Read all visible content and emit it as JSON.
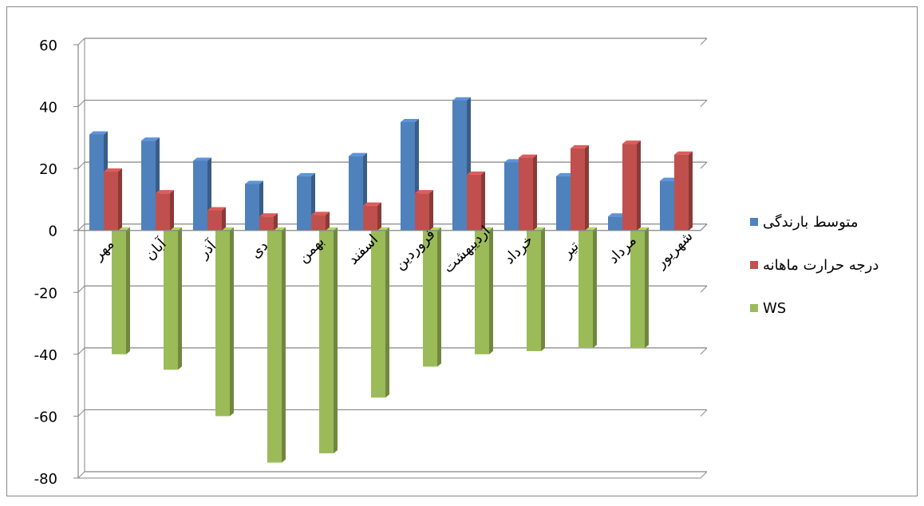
{
  "chart_data": {
    "type": "bar",
    "title": "",
    "xlabel": "",
    "ylabel": "",
    "ylim": [
      -80,
      60
    ],
    "yticks": [
      60,
      40,
      20,
      0,
      -20,
      -40,
      -60,
      -80
    ],
    "grid": true,
    "legend_position": "right",
    "categories": [
      "مهر",
      "آبان",
      "آذر",
      "دی",
      "بهمن",
      "اسفند",
      "فروردین",
      "اردیبهشت",
      "خرداد",
      "تیر",
      "مرداد",
      "شهریور"
    ],
    "series": [
      {
        "name": "متوسط بارندگی",
        "color": "#4f81bd",
        "values": [
          31,
          29,
          22.5,
          15,
          17.5,
          24,
          35,
          42,
          22,
          17.5,
          4.5,
          16
        ]
      },
      {
        "name": "درجه حرارت ماهانه",
        "color": "#c0504d",
        "values": [
          19,
          12,
          6.5,
          4.5,
          5,
          8,
          12,
          18,
          23.5,
          26.5,
          28,
          24.5
        ]
      },
      {
        "name": "WS",
        "color": "#9bbb59",
        "values": [
          -40,
          -45,
          -60,
          -75,
          -72,
          -54,
          -44,
          -40,
          -39,
          -38,
          -38,
          0
        ]
      }
    ]
  }
}
